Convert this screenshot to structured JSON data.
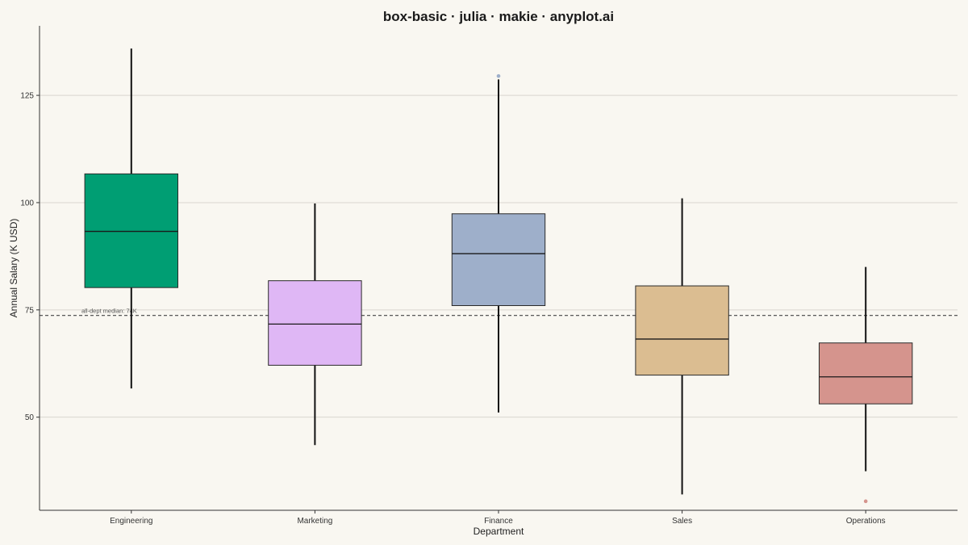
{
  "chart_data": {
    "type": "box",
    "title": "box-basic · julia · makie · anyplot.ai",
    "xlabel": "Department",
    "ylabel": "Annual Salary (K USD)",
    "ylim": [
      28.3,
      141.2
    ],
    "yticks": [
      50,
      75,
      100,
      125
    ],
    "grid": "horizontal",
    "reference_line": {
      "value": 73.7,
      "label": "all-dept median: 74K",
      "style": "dashed"
    },
    "categories": [
      "Engineering",
      "Marketing",
      "Finance",
      "Sales",
      "Operations"
    ],
    "boxes": [
      {
        "category": "Engineering",
        "whisker_low": 56.7,
        "q1": 80.2,
        "median": 93.3,
        "q3": 106.7,
        "whisker_high": 135.9,
        "outliers": [],
        "color": "#009e73"
      },
      {
        "category": "Marketing",
        "whisker_low": 43.5,
        "q1": 62.1,
        "median": 71.7,
        "q3": 81.8,
        "whisker_high": 99.8,
        "outliers": [],
        "color": "#dfb7f5"
      },
      {
        "category": "Finance",
        "whisker_low": 51.1,
        "q1": 76.0,
        "median": 88.1,
        "q3": 97.4,
        "whisker_high": 128.7,
        "outliers": [
          129.5
        ],
        "color": "#9eafca"
      },
      {
        "category": "Sales",
        "whisker_low": 32.0,
        "q1": 59.8,
        "median": 68.2,
        "q3": 80.6,
        "whisker_high": 101.0,
        "outliers": [],
        "color": "#dbbd91"
      },
      {
        "category": "Operations",
        "whisker_low": 37.4,
        "q1": 53.1,
        "median": 59.4,
        "q3": 67.3,
        "whisker_high": 85.0,
        "outliers": [
          30.4
        ],
        "color": "#d5948d"
      }
    ]
  }
}
